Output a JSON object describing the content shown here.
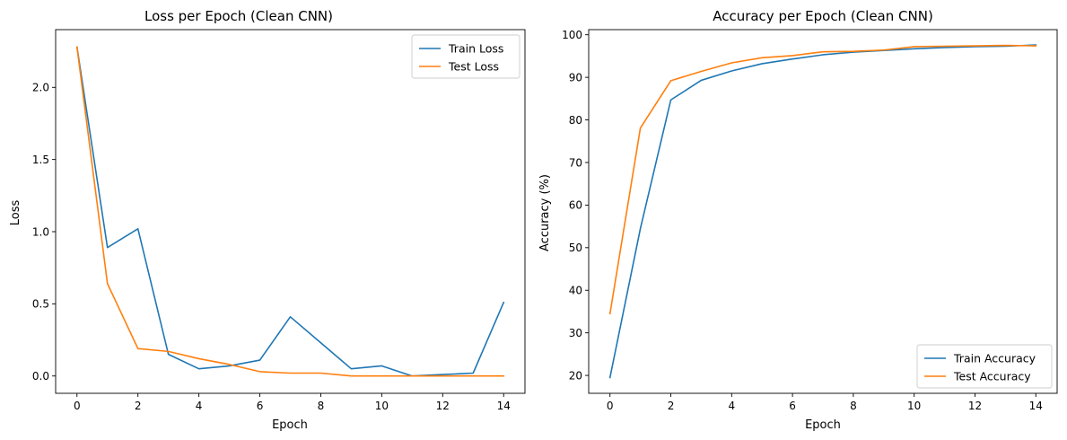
{
  "chart_data": [
    {
      "type": "line",
      "title": "Loss per Epoch (Clean CNN)",
      "xlabel": "Epoch",
      "ylabel": "Loss",
      "xlim": [
        -0.7,
        14.7
      ],
      "ylim": [
        -0.12,
        2.4
      ],
      "xticks": [
        0,
        2,
        4,
        6,
        8,
        10,
        12,
        14
      ],
      "yticks": [
        0.0,
        0.5,
        1.0,
        1.5,
        2.0
      ],
      "ytick_labels": [
        "0.0",
        "0.5",
        "1.0",
        "1.5",
        "2.0"
      ],
      "grid": false,
      "legend": "top-right",
      "x": [
        0,
        1,
        2,
        3,
        4,
        5,
        6,
        7,
        8,
        9,
        10,
        11,
        12,
        13,
        14
      ],
      "series": [
        {
          "name": "Train Loss",
          "color": "#1f77b4",
          "values": [
            2.28,
            0.89,
            1.02,
            0.15,
            0.05,
            0.07,
            0.11,
            0.41,
            0.23,
            0.05,
            0.07,
            0.0,
            0.01,
            0.02,
            0.51
          ]
        },
        {
          "name": "Test Loss",
          "color": "#ff7f0e",
          "values": [
            2.28,
            0.64,
            0.19,
            0.17,
            0.12,
            0.08,
            0.03,
            0.02,
            0.02,
            0.0,
            0.0,
            0.0,
            0.0,
            0.0,
            0.0
          ]
        }
      ]
    },
    {
      "type": "line",
      "title": "Accuracy per Epoch (Clean CNN)",
      "xlabel": "Epoch",
      "ylabel": "Accuracy (%)",
      "xlim": [
        -0.7,
        14.7
      ],
      "ylim": [
        15.8,
        101.2
      ],
      "xticks": [
        0,
        2,
        4,
        6,
        8,
        10,
        12,
        14
      ],
      "yticks": [
        20,
        30,
        40,
        50,
        60,
        70,
        80,
        90,
        100
      ],
      "ytick_labels": [
        "20",
        "30",
        "40",
        "50",
        "60",
        "70",
        "80",
        "90",
        "100"
      ],
      "grid": false,
      "legend": "bottom-right",
      "x": [
        0,
        1,
        2,
        3,
        4,
        5,
        6,
        7,
        8,
        9,
        10,
        11,
        12,
        13,
        14
      ],
      "series": [
        {
          "name": "Train Accuracy",
          "color": "#1f77b4",
          "values": [
            19.5,
            54.5,
            84.7,
            89.3,
            91.5,
            93.2,
            94.3,
            95.3,
            95.9,
            96.3,
            96.7,
            97.0,
            97.2,
            97.3,
            97.6
          ]
        },
        {
          "name": "Test Accuracy",
          "color": "#ff7f0e",
          "values": [
            34.5,
            78.1,
            89.2,
            91.4,
            93.4,
            94.6,
            95.1,
            96.0,
            96.1,
            96.4,
            97.2,
            97.3,
            97.4,
            97.5,
            97.4
          ]
        }
      ]
    }
  ]
}
